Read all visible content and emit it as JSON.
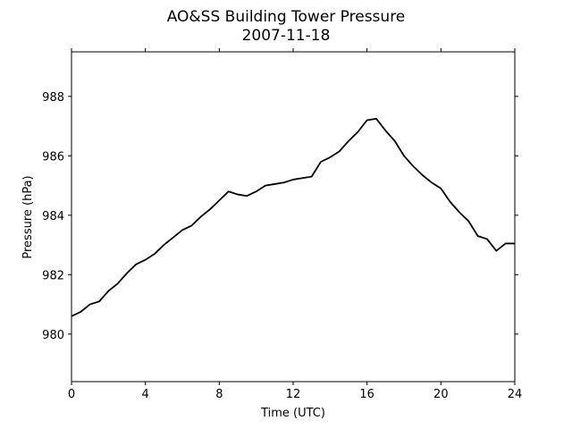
{
  "chart_data": {
    "type": "line",
    "title": "AO&SS Building Tower Pressure",
    "subtitle": "2007-11-18",
    "xlabel": "Time (UTC)",
    "ylabel": "Pressure (hPa)",
    "xlim": [
      0,
      24
    ],
    "ylim": [
      978.4,
      989.5
    ],
    "x_ticks": [
      0,
      4,
      8,
      12,
      16,
      20,
      24
    ],
    "y_ticks": [
      980,
      982,
      984,
      986,
      988
    ],
    "grid": false,
    "legend": "none",
    "line_color": "#000000",
    "series": [
      {
        "x": [
          0,
          0.5,
          1,
          1.5,
          2,
          2.5,
          3,
          3.5,
          4,
          4.5,
          5,
          5.5,
          6,
          6.5,
          7,
          7.5,
          8,
          8.5,
          9,
          9.5,
          10,
          10.5,
          11,
          11.5,
          12,
          12.5,
          13,
          13.5,
          14,
          14.5,
          15,
          15.5,
          16,
          16.5,
          17,
          17.5,
          18,
          18.5,
          19,
          19.5,
          20,
          20.5,
          21,
          21.5,
          22,
          22.5,
          23,
          23.5,
          24
        ],
        "y": [
          980.6,
          980.75,
          981.0,
          981.1,
          981.45,
          981.7,
          982.05,
          982.35,
          982.5,
          982.7,
          983.0,
          983.25,
          983.5,
          983.65,
          983.95,
          984.2,
          984.5,
          984.8,
          984.7,
          984.65,
          984.8,
          985.0,
          985.05,
          985.1,
          985.2,
          985.25,
          985.3,
          985.8,
          985.95,
          986.15,
          986.5,
          986.8,
          987.2,
          987.25,
          986.85,
          986.5,
          986.0,
          985.65,
          985.35,
          985.1,
          984.9,
          984.45,
          984.1,
          983.8,
          983.3,
          983.2,
          982.8,
          983.05,
          983.05
        ]
      }
    ]
  }
}
